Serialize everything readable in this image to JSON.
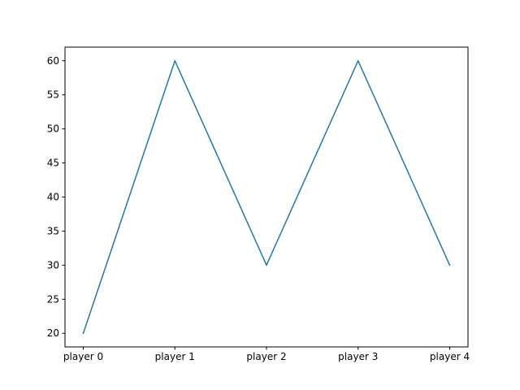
{
  "chart_data": {
    "type": "line",
    "title": "",
    "xlabel": "",
    "ylabel": "",
    "categories": [
      "player 0",
      "player 1",
      "player 2",
      "player 3",
      "player 4"
    ],
    "series": [
      {
        "values": [
          20,
          60,
          30,
          60,
          30
        ],
        "color": "#1f77b4"
      }
    ],
    "ylim": [
      18,
      62
    ],
    "yticks": [
      20,
      25,
      30,
      35,
      40,
      45,
      50,
      55,
      60
    ],
    "grid": false,
    "legend": "none"
  }
}
